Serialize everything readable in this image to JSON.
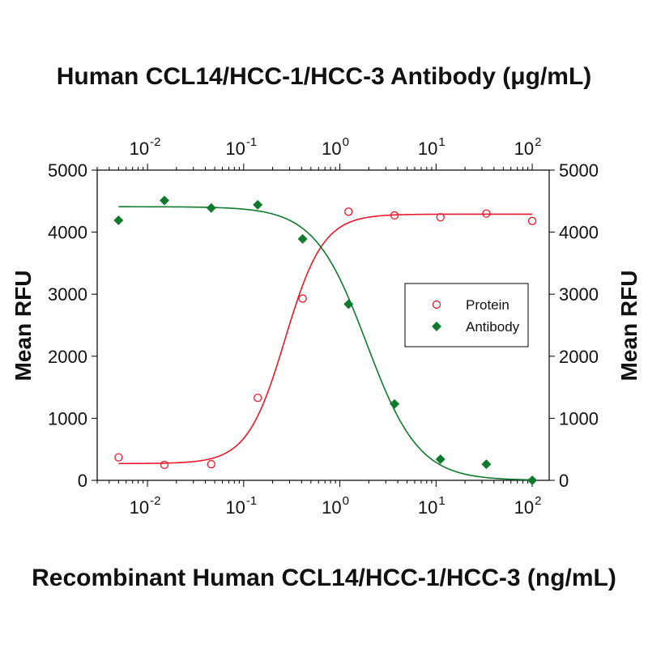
{
  "chart_data": {
    "type": "scatter",
    "title_top": "Human CCL14/HCC-1/HCC-3 Antibody (μg/mL)",
    "xlabel": "Recombinant Human CCL14/HCC-1/HCC-3 (ng/mL)",
    "ylabel_left": "Mean RFU",
    "ylabel_right": "Mean RFU",
    "xscale": "log",
    "xlim": [
      0.003,
      150
    ],
    "ylim": [
      0,
      5000
    ],
    "y_ticks": [
      0,
      1000,
      2000,
      3000,
      4000,
      5000
    ],
    "x_ticks": [
      {
        "value": 0.01,
        "base": "10",
        "exp": "-2"
      },
      {
        "value": 0.1,
        "base": "10",
        "exp": "-1"
      },
      {
        "value": 1,
        "base": "10",
        "exp": "0"
      },
      {
        "value": 10,
        "base": "10",
        "exp": "1"
      },
      {
        "value": 100,
        "base": "10",
        "exp": "2"
      }
    ],
    "legend_position": "right-center",
    "grid": false,
    "series": [
      {
        "name": "Protein",
        "marker": "open-circle",
        "color": "#e8192c",
        "points": [
          [
            0.005,
            370
          ],
          [
            0.015,
            250
          ],
          [
            0.046,
            260
          ],
          [
            0.14,
            1330
          ],
          [
            0.41,
            2930
          ],
          [
            1.23,
            4330
          ],
          [
            3.7,
            4270
          ],
          [
            11.1,
            4240
          ],
          [
            33.3,
            4300
          ],
          [
            100,
            4180
          ]
        ],
        "fit": {
          "bottom": 270,
          "top": 4290,
          "ec50": 0.27,
          "hill": 2.2
        }
      },
      {
        "name": "Antibody",
        "marker": "filled-diamond",
        "color": "#0f7a2d",
        "points": [
          [
            0.005,
            4190
          ],
          [
            0.015,
            4510
          ],
          [
            0.046,
            4390
          ],
          [
            0.14,
            4440
          ],
          [
            0.41,
            3890
          ],
          [
            1.23,
            2840
          ],
          [
            3.7,
            1230
          ],
          [
            11.1,
            340
          ],
          [
            33.3,
            260
          ],
          [
            100,
            0
          ]
        ],
        "fit": {
          "bottom": 0,
          "top": 4410,
          "ec50": 1.9,
          "hill": -1.6
        }
      }
    ]
  }
}
